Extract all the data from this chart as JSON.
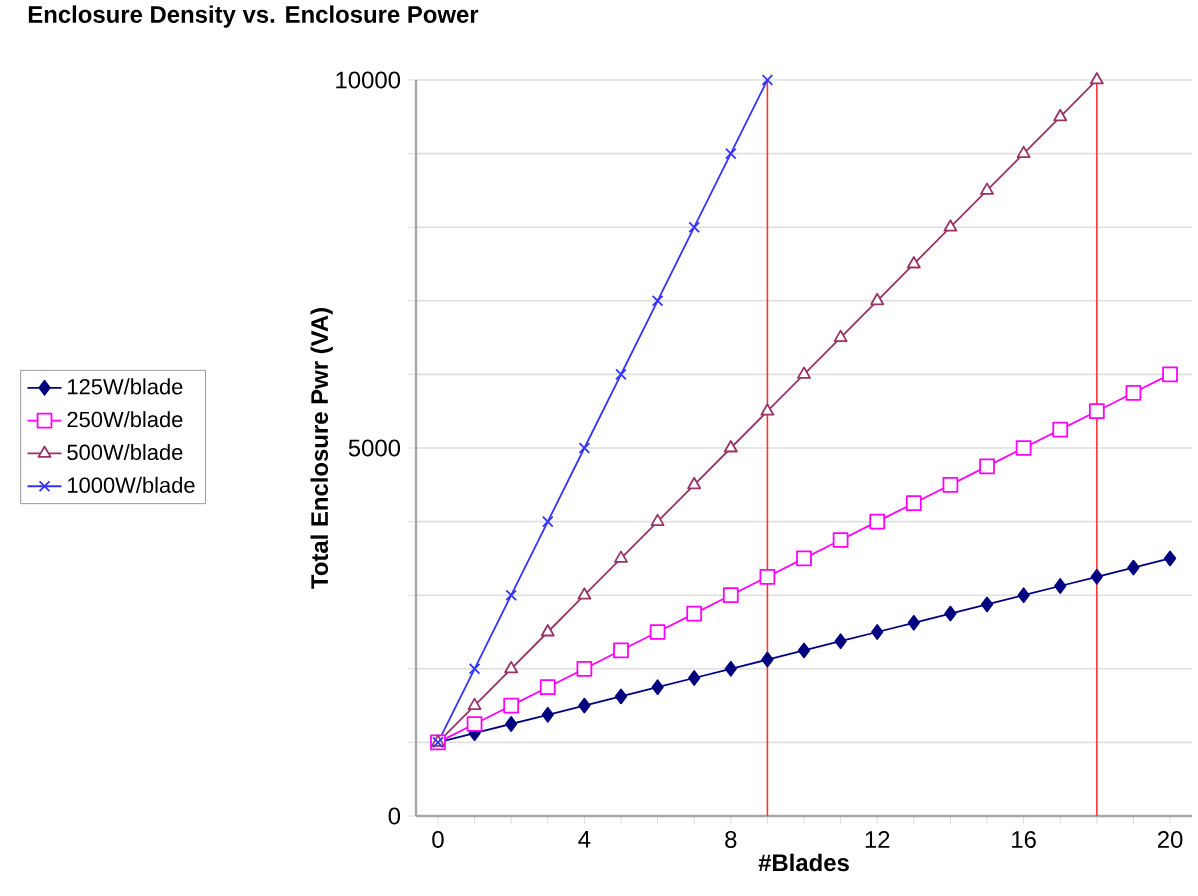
{
  "chart_data": {
    "type": "line",
    "title": "Enclosure Density vs. Enclosure Power",
    "xlabel": "#Blades",
    "ylabel": "Total Enclosure Pwr (VA)",
    "xlim": [
      -0.6,
      20.6
    ],
    "ylim": [
      0,
      10000
    ],
    "xticks": [
      0,
      {
        "value": 1,
        "label": null
      },
      {
        "value": 2,
        "label": null
      },
      {
        "value": 3,
        "label": null
      },
      4,
      {
        "value": 5,
        "label": null
      },
      {
        "value": 6,
        "label": null
      },
      {
        "value": 7,
        "label": null
      },
      8,
      {
        "value": 9,
        "label": null
      },
      {
        "value": 10,
        "label": null
      },
      {
        "value": 11,
        "label": null
      },
      12,
      {
        "value": 13,
        "label": null
      },
      {
        "value": 14,
        "label": null
      },
      {
        "value": 15,
        "label": null
      },
      16,
      {
        "value": 17,
        "label": null
      },
      {
        "value": 18,
        "label": null
      },
      {
        "value": 19,
        "label": null
      },
      20
    ],
    "yticks": [
      0,
      {
        "value": 1000,
        "label": null
      },
      {
        "value": 2000,
        "label": null
      },
      {
        "value": 3000,
        "label": null
      },
      {
        "value": 4000,
        "label": null
      },
      5000,
      {
        "value": 6000,
        "label": null
      },
      {
        "value": 7000,
        "label": null
      },
      {
        "value": 8000,
        "label": null
      },
      {
        "value": 9000,
        "label": null
      },
      10000
    ],
    "grid": "y",
    "legend": "left",
    "line_style": "solid",
    "ref_lines": [
      {
        "axis": "x",
        "value": 9,
        "color": "#ff3333"
      },
      {
        "axis": "x",
        "value": 18,
        "color": "#ff3333"
      }
    ],
    "series": [
      {
        "name": "125W/blade",
        "color": "#000080",
        "marker": "diamond",
        "x": [
          0,
          1,
          2,
          3,
          4,
          5,
          6,
          7,
          8,
          9,
          10,
          11,
          12,
          13,
          14,
          15,
          16,
          17,
          18,
          19,
          20
        ],
        "values": [
          1000,
          1125,
          1250,
          1375,
          1500,
          1625,
          1750,
          1875,
          2000,
          2125,
          2250,
          2375,
          2500,
          2625,
          2750,
          2875,
          3000,
          3125,
          3250,
          3375,
          3500
        ]
      },
      {
        "name": "250W/blade",
        "color": "#ff00ff",
        "marker": "square",
        "x": [
          0,
          1,
          2,
          3,
          4,
          5,
          6,
          7,
          8,
          9,
          10,
          11,
          12,
          13,
          14,
          15,
          16,
          17,
          18,
          19,
          20
        ],
        "values": [
          1000,
          1250,
          1500,
          1750,
          2000,
          2250,
          2500,
          2750,
          3000,
          3250,
          3500,
          3750,
          4000,
          4250,
          4500,
          4750,
          5000,
          5250,
          5500,
          5750,
          6000
        ]
      },
      {
        "name": "500W/blade",
        "color": "#993366",
        "marker": "triangle",
        "x": [
          0,
          1,
          2,
          3,
          4,
          5,
          6,
          7,
          8,
          9,
          10,
          11,
          12,
          13,
          14,
          15,
          16,
          17,
          18
        ],
        "values": [
          1000,
          1500,
          2000,
          2500,
          3000,
          3500,
          4000,
          4500,
          5000,
          5500,
          6000,
          6500,
          7000,
          7500,
          8000,
          8500,
          9000,
          9500,
          10000
        ]
      },
      {
        "name": "1000W/blade",
        "color": "#3333ff",
        "marker": "cross",
        "x": [
          0,
          1,
          2,
          3,
          4,
          5,
          6,
          7,
          8,
          9
        ],
        "values": [
          1000,
          2000,
          3000,
          4000,
          5000,
          6000,
          7000,
          8000,
          9000,
          10000
        ]
      }
    ]
  }
}
